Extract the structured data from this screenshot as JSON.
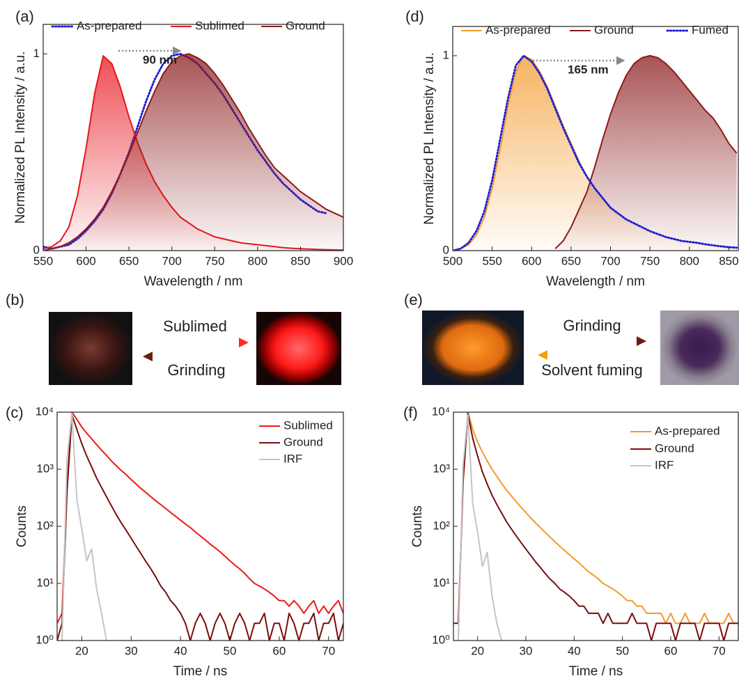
{
  "chart_data": [
    {
      "type": "line",
      "panel_label": "(a)",
      "x_label": "Wavelength / nm",
      "y_label": "Normalized PL Intensity / a.u.",
      "annotations": [
        "90 nm"
      ],
      "legend": "top",
      "x": [
        550,
        560,
        570,
        580,
        590,
        600,
        610,
        620,
        630,
        640,
        650,
        660,
        670,
        680,
        690,
        700,
        710,
        720,
        730,
        740,
        750,
        760,
        770,
        780,
        790,
        800,
        810,
        820,
        830,
        840,
        850,
        860,
        870,
        880,
        890,
        900
      ],
      "xlim": [
        550,
        900
      ],
      "xticks": [
        550,
        600,
        650,
        700,
        750,
        800,
        850,
        900
      ],
      "ylim": [
        0,
        1.15
      ],
      "yticks": [
        0,
        1
      ],
      "series": [
        {
          "name": "As-prepared",
          "color": "#1f1fd8",
          "line_style": "dotted",
          "fill": false,
          "values": [
            0.02,
            0.01,
            0.02,
            0.03,
            0.06,
            0.1,
            0.15,
            0.21,
            0.29,
            0.39,
            0.5,
            0.63,
            0.76,
            0.87,
            0.95,
            0.99,
            1.0,
            0.98,
            0.95,
            0.9,
            0.85,
            0.79,
            0.72,
            0.65,
            0.58,
            0.51,
            0.45,
            0.39,
            0.34,
            0.3,
            0.26,
            0.23,
            0.2,
            0.19,
            null,
            null
          ]
        },
        {
          "name": "Sublimed",
          "color": "#e8141c",
          "line_style": "solid",
          "fill": true,
          "values": [
            0.01,
            0.02,
            0.05,
            0.12,
            0.28,
            0.52,
            0.8,
            0.99,
            0.95,
            0.83,
            0.68,
            0.55,
            0.44,
            0.35,
            0.28,
            0.22,
            0.17,
            0.14,
            0.11,
            0.09,
            0.07,
            0.06,
            0.05,
            0.04,
            0.035,
            0.03,
            0.025,
            0.02,
            0.015,
            0.012,
            0.01,
            0.008,
            0.006,
            0.005,
            0.004,
            0.003
          ]
        },
        {
          "name": "Ground",
          "color": "#8b1a1a",
          "line_style": "solid",
          "fill": true,
          "values": [
            0,
            0.01,
            0.02,
            0.04,
            0.07,
            0.11,
            0.16,
            0.22,
            0.3,
            0.39,
            0.49,
            0.6,
            0.71,
            0.81,
            0.9,
            0.96,
            0.99,
            1.0,
            0.98,
            0.95,
            0.9,
            0.84,
            0.77,
            0.7,
            0.62,
            0.55,
            0.48,
            0.42,
            0.38,
            0.34,
            0.3,
            0.27,
            0.24,
            0.21,
            0.19,
            0.17
          ]
        }
      ]
    },
    {
      "type": "line",
      "panel_label": "(d)",
      "x_label": "Wavelength / nm",
      "y_label": "Normalized PL Intensity / a.u.",
      "annotations": [
        "165 nm"
      ],
      "legend": "top",
      "x": [
        500,
        510,
        520,
        530,
        540,
        550,
        560,
        570,
        580,
        590,
        600,
        610,
        620,
        630,
        640,
        650,
        660,
        670,
        680,
        690,
        700,
        710,
        720,
        730,
        740,
        750,
        760,
        770,
        780,
        790,
        800,
        810,
        820,
        830,
        840,
        850,
        860
      ],
      "xlim": [
        500,
        862
      ],
      "xticks": [
        500,
        550,
        600,
        650,
        700,
        750,
        800,
        850
      ],
      "ylim": [
        0,
        1.15
      ],
      "yticks": [
        0,
        1
      ],
      "series": [
        {
          "name": "As-prepared",
          "color": "#f39a2c",
          "line_style": "solid",
          "fill": true,
          "values": [
            0,
            0.01,
            0.03,
            0.08,
            0.17,
            0.32,
            0.52,
            0.74,
            0.92,
            1.0,
            0.98,
            0.92,
            0.84,
            0.74,
            0.64,
            0.55,
            0.46,
            0.38,
            0.32,
            0.27,
            0.22,
            0.19,
            0.16,
            0.14,
            0.12,
            0.1,
            0.085,
            0.07,
            0.06,
            0.05,
            0.045,
            0.04,
            0.033,
            0.027,
            0.022,
            0.018,
            0.015
          ]
        },
        {
          "name": "Ground",
          "color": "#8b1a1a",
          "line_style": "solid",
          "fill": true,
          "values": [
            null,
            null,
            null,
            null,
            null,
            null,
            null,
            null,
            null,
            null,
            null,
            null,
            null,
            0.01,
            0.05,
            0.12,
            0.21,
            0.3,
            0.43,
            0.57,
            0.7,
            0.81,
            0.9,
            0.96,
            0.99,
            1.0,
            0.99,
            0.96,
            0.92,
            0.87,
            0.82,
            0.77,
            0.72,
            0.68,
            0.62,
            0.55,
            0.5
          ]
        },
        {
          "name": "Fumed",
          "color": "#1f1fd8",
          "line_style": "dotted",
          "fill": false,
          "values": [
            0,
            0.01,
            0.04,
            0.1,
            0.2,
            0.36,
            0.57,
            0.78,
            0.95,
            1.0,
            0.97,
            0.91,
            0.83,
            0.73,
            0.63,
            0.54,
            0.45,
            0.38,
            0.32,
            0.27,
            0.22,
            0.19,
            0.16,
            0.14,
            0.12,
            0.1,
            0.085,
            0.07,
            0.06,
            0.05,
            0.045,
            0.04,
            0.033,
            0.027,
            0.022,
            0.018,
            0.015
          ]
        }
      ]
    },
    {
      "type": "line",
      "panel_label": "(c)",
      "x_label": "Time / ns",
      "y_label": "Counts",
      "legend": "upper right",
      "log_y": true,
      "x": [
        15,
        16,
        17,
        18,
        19,
        20,
        21,
        22,
        23,
        24,
        25,
        26,
        27,
        28,
        29,
        30,
        31,
        32,
        33,
        34,
        35,
        36,
        37,
        38,
        39,
        40,
        41,
        42,
        43,
        44,
        45,
        46,
        47,
        48,
        49,
        50,
        51,
        52,
        53,
        54,
        55,
        56,
        57,
        58,
        59,
        60,
        61,
        62,
        63,
        64,
        65,
        66,
        67,
        68,
        69,
        70,
        71,
        72,
        73
      ],
      "xlim": [
        15,
        73
      ],
      "xticks": [
        20,
        30,
        40,
        50,
        60,
        70
      ],
      "ylim": [
        1,
        10000
      ],
      "yticks": [
        {
          "value": 1,
          "label": "10⁰"
        },
        {
          "value": 10,
          "label": "10¹"
        },
        {
          "value": 100,
          "label": "10²"
        },
        {
          "value": 1000,
          "label": "10³"
        },
        {
          "value": 10000,
          "label": "10⁴"
        }
      ],
      "series": [
        {
          "name": "Sublimed",
          "color": "#f01818",
          "line_style": "solid",
          "fill": false,
          "values": [
            2,
            3,
            500,
            10000,
            7500,
            5500,
            4300,
            3400,
            2700,
            2150,
            1750,
            1400,
            1150,
            950,
            800,
            660,
            550,
            460,
            390,
            330,
            280,
            240,
            205,
            175,
            150,
            128,
            110,
            95,
            80,
            68,
            58,
            49,
            42,
            36,
            30,
            25,
            21,
            18,
            15,
            12,
            10,
            9,
            8,
            7,
            6,
            5,
            5,
            4,
            5,
            4,
            3,
            4,
            5,
            3,
            4,
            3,
            4,
            5,
            3
          ]
        },
        {
          "name": "Ground",
          "color": "#7a0c0c",
          "line_style": "solid",
          "fill": false,
          "values": [
            1,
            2,
            400,
            9000,
            5000,
            2800,
            1700,
            1100,
            700,
            480,
            330,
            230,
            160,
            115,
            85,
            62,
            45,
            33,
            24,
            18,
            13,
            9,
            7,
            5,
            4,
            3,
            2,
            1,
            2,
            3,
            2,
            1,
            2,
            3,
            2,
            1,
            2,
            3,
            2,
            1,
            2,
            2,
            3,
            1,
            2,
            2,
            1,
            3,
            2,
            1,
            2,
            2,
            3,
            1,
            2,
            2,
            3,
            1,
            2
          ]
        },
        {
          "name": "IRF",
          "color": "#c4c4c4",
          "line_style": "solid",
          "fill": false,
          "values": [
            null,
            1,
            1500,
            9500,
            300,
            90,
            25,
            40,
            8,
            3,
            1,
            null,
            null,
            null,
            null,
            null,
            null,
            null,
            null,
            null,
            null,
            null,
            null,
            null,
            null,
            null,
            null,
            null,
            null,
            null,
            null,
            null,
            null,
            null,
            null,
            null,
            null,
            null,
            null,
            null,
            null,
            null,
            null,
            null,
            null,
            null,
            null,
            null,
            null,
            null,
            null,
            null,
            null,
            null,
            null,
            null,
            null,
            null,
            null
          ]
        }
      ]
    },
    {
      "type": "line",
      "panel_label": "(f)",
      "x_label": "Time / ns",
      "y_label": "Counts",
      "legend": "upper right",
      "log_y": true,
      "x": [
        15,
        16,
        17,
        18,
        19,
        20,
        21,
        22,
        23,
        24,
        25,
        26,
        27,
        28,
        29,
        30,
        31,
        32,
        33,
        34,
        35,
        36,
        37,
        38,
        39,
        40,
        41,
        42,
        43,
        44,
        45,
        46,
        47,
        48,
        49,
        50,
        51,
        52,
        53,
        54,
        55,
        56,
        57,
        58,
        59,
        60,
        61,
        62,
        63,
        64,
        65,
        66,
        67,
        68,
        69,
        70,
        71,
        72,
        73,
        74
      ],
      "xlim": [
        15,
        74
      ],
      "xticks": [
        20,
        30,
        40,
        50,
        60,
        70
      ],
      "ylim": [
        1,
        10000
      ],
      "yticks": [
        {
          "value": 1,
          "label": "10⁰"
        },
        {
          "value": 10,
          "label": "10¹"
        },
        {
          "value": 100,
          "label": "10²"
        },
        {
          "value": 1000,
          "label": "10³"
        },
        {
          "value": 10000,
          "label": "10⁴"
        }
      ],
      "series": [
        {
          "name": "As-prepared",
          "color": "#f39a2c",
          "line_style": "solid",
          "fill": false,
          "values": [
            null,
            1,
            800,
            10000,
            5000,
            3000,
            2000,
            1400,
            1000,
            750,
            560,
            430,
            340,
            270,
            215,
            175,
            140,
            115,
            95,
            78,
            65,
            54,
            45,
            38,
            32,
            27,
            23,
            19,
            16,
            14,
            12,
            10,
            9,
            8,
            7,
            6,
            5,
            5,
            4,
            4,
            3,
            3,
            3,
            3,
            2,
            3,
            2,
            2,
            3,
            2,
            2,
            2,
            3,
            2,
            2,
            2,
            2,
            3,
            2,
            2
          ]
        },
        {
          "name": "Ground",
          "color": "#7a0c0c",
          "line_style": "solid",
          "fill": false,
          "values": [
            2,
            2,
            600,
            9500,
            3500,
            1700,
            900,
            550,
            350,
            240,
            170,
            120,
            90,
            68,
            52,
            40,
            31,
            24,
            19,
            15,
            12,
            10,
            8,
            7,
            6,
            5,
            4,
            4,
            3,
            3,
            3,
            2,
            3,
            2,
            2,
            2,
            2,
            3,
            2,
            2,
            2,
            1,
            2,
            2,
            2,
            2,
            1,
            2,
            2,
            2,
            2,
            1,
            2,
            2,
            2,
            2,
            1,
            2,
            2,
            2
          ]
        },
        {
          "name": "IRF",
          "color": "#c4c4c4",
          "line_style": "solid",
          "fill": false,
          "values": [
            null,
            1,
            1200,
            9000,
            250,
            80,
            20,
            35,
            6,
            2,
            1,
            null,
            null,
            null,
            null,
            null,
            null,
            null,
            null,
            null,
            null,
            null,
            null,
            null,
            null,
            null,
            null,
            null,
            null,
            null,
            null,
            null,
            null,
            null,
            null,
            null,
            null,
            null,
            null,
            null,
            null,
            null,
            null,
            null,
            null,
            null,
            null,
            null,
            null,
            null,
            null,
            null,
            null,
            null,
            null,
            null,
            null,
            null,
            null,
            null
          ]
        }
      ]
    }
  ],
  "schemes": [
    {
      "panel_label": "(b)",
      "forward": "Sublimed",
      "backward": "Grinding"
    },
    {
      "panel_label": "(e)",
      "forward": "Grinding",
      "backward": "Solvent fuming"
    }
  ]
}
